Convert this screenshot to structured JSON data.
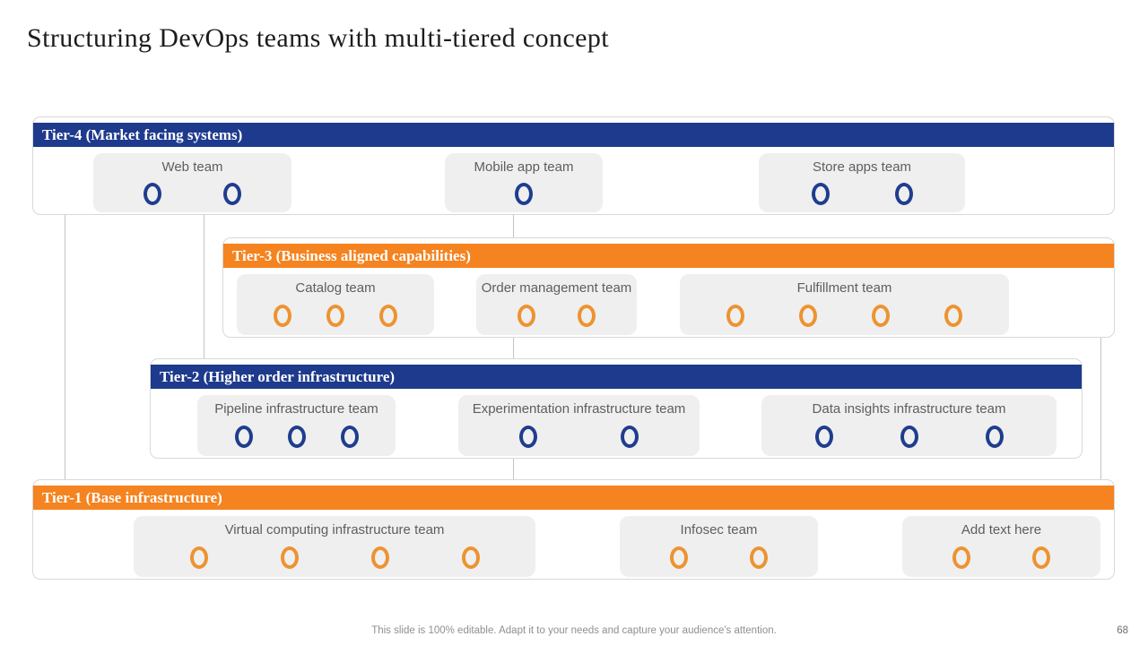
{
  "slide": {
    "title": "Structuring DevOps teams with multi-tiered concept",
    "footer_note": "This slide is 100% editable. Adapt it to your needs and capture your audience's attention.",
    "page_number": "68"
  },
  "colors": {
    "tier_blue": "#1e3a8c",
    "tier_orange": "#f5831f",
    "blue_ring": "#1f3d8f",
    "orange_ring": "#ed9331",
    "card_background": "#efefef",
    "container_border": "#d8d8d8",
    "connector_line": "#c4c4c4",
    "label_text": "#5e5e5e",
    "footer_text": "#8f8f8f"
  },
  "tiers": [
    {
      "id": "tier-4",
      "label": "Tier-4 (Market facing systems)",
      "accent": "blue",
      "teams": [
        {
          "name": "Web team",
          "members": 2
        },
        {
          "name": "Mobile app team",
          "members": 1
        },
        {
          "name": "Store apps team",
          "members": 2
        }
      ]
    },
    {
      "id": "tier-3",
      "label": "Tier-3 (Business aligned capabilities)",
      "accent": "orange",
      "teams": [
        {
          "name": "Catalog team",
          "members": 3
        },
        {
          "name": "Order management team",
          "members": 2
        },
        {
          "name": "Fulfillment team",
          "members": 4
        }
      ]
    },
    {
      "id": "tier-2",
      "label": "Tier-2 (Higher order infrastructure)",
      "accent": "blue",
      "teams": [
        {
          "name": "Pipeline infrastructure team",
          "members": 3
        },
        {
          "name": "Experimentation infrastructure team",
          "members": 2
        },
        {
          "name": "Data insights infrastructure team",
          "members": 3
        }
      ]
    },
    {
      "id": "tier-1",
      "label": "Tier-1 (Base infrastructure)",
      "accent": "orange",
      "teams": [
        {
          "name": "Virtual computing infrastructure team",
          "members": 4
        },
        {
          "name": "Infosec team",
          "members": 2
        },
        {
          "name": "Add text here",
          "members": 2
        }
      ]
    }
  ]
}
